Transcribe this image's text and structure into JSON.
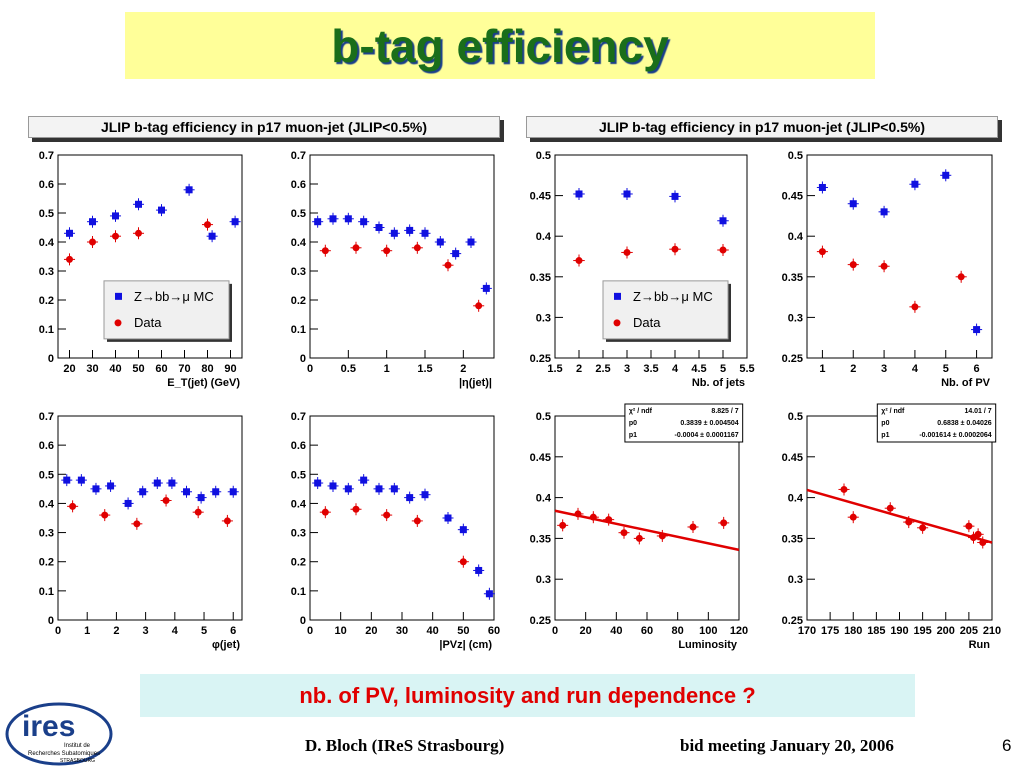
{
  "slide": {
    "title": "b-tag efficiency",
    "question": "nb. of PV, luminosity and run dependence ?",
    "footer_left": "D. Bloch  (IReS Strasbourg)",
    "footer_right": "bid meeting  January 20, 2006",
    "page_number": "6",
    "logo_text": "ires",
    "logo_sub1": "Institut de",
    "logo_sub2": "Recherches Subatomiques",
    "logo_sub3": "STRASBOURG"
  },
  "panel_titles": {
    "left": "JLIP b-tag efficiency in p17 muon-jet (JLIP<0.5%)",
    "right": "JLIP b-tag efficiency in p17 muon-jet (JLIP<0.5%)"
  },
  "colors": {
    "mc": "#1010e0",
    "data": "#e00000",
    "fit": "#e00000"
  },
  "chart_data": [
    {
      "type": "scatter",
      "id": "et",
      "xlabel": "E_T(jet) (GeV)",
      "xlim": [
        15,
        95
      ],
      "ylim": [
        0,
        0.7
      ],
      "xticks": [
        20,
        30,
        40,
        50,
        60,
        70,
        80,
        90
      ],
      "yticks": [
        0,
        0.1,
        0.2,
        0.3,
        0.4,
        0.5,
        0.6,
        0.7
      ],
      "legend": [
        "Z→bb→μ MC",
        "Data"
      ],
      "series": [
        {
          "name": "Z→bb→μ MC",
          "points": [
            [
              20,
              0.43
            ],
            [
              30,
              0.47
            ],
            [
              40,
              0.49
            ],
            [
              50,
              0.53
            ],
            [
              60,
              0.51
            ],
            [
              72,
              0.58
            ],
            [
              82,
              0.42
            ],
            [
              92,
              0.47
            ]
          ]
        },
        {
          "name": "Data",
          "points": [
            [
              20,
              0.34
            ],
            [
              30,
              0.4
            ],
            [
              40,
              0.42
            ],
            [
              50,
              0.43
            ],
            [
              80,
              0.46
            ]
          ]
        }
      ]
    },
    {
      "type": "scatter",
      "id": "eta",
      "xlabel": "|η(jet)|",
      "xlim": [
        0,
        2.4
      ],
      "ylim": [
        0,
        0.7
      ],
      "xticks": [
        0,
        0.5,
        1,
        1.5,
        2
      ],
      "yticks": [
        0,
        0.1,
        0.2,
        0.3,
        0.4,
        0.5,
        0.6,
        0.7
      ],
      "series": [
        {
          "name": "",
          "points": [
            [
              0.1,
              0.47
            ],
            [
              0.3,
              0.48
            ],
            [
              0.5,
              0.48
            ],
            [
              0.7,
              0.47
            ],
            [
              0.9,
              0.45
            ],
            [
              1.1,
              0.43
            ],
            [
              1.3,
              0.44
            ],
            [
              1.5,
              0.43
            ],
            [
              1.7,
              0.4
            ],
            [
              1.9,
              0.36
            ],
            [
              2.1,
              0.4
            ],
            [
              2.3,
              0.24
            ]
          ]
        },
        {
          "name": "",
          "points": [
            [
              0.2,
              0.37
            ],
            [
              0.6,
              0.38
            ],
            [
              1.0,
              0.37
            ],
            [
              1.4,
              0.38
            ],
            [
              1.8,
              0.32
            ],
            [
              2.2,
              0.18
            ]
          ]
        }
      ]
    },
    {
      "type": "scatter",
      "id": "njets",
      "xlabel": "Nb. of jets",
      "xlim": [
        1.5,
        5.5
      ],
      "ylim": [
        0.25,
        0.5
      ],
      "xticks": [
        1.5,
        2,
        2.5,
        3,
        3.5,
        4,
        4.5,
        5,
        5.5
      ],
      "yticks": [
        0.25,
        0.3,
        0.35,
        0.4,
        0.45,
        0.5
      ],
      "legend": [
        "Z→bb→μ MC",
        "Data"
      ],
      "series": [
        {
          "name": "Z→bb→μ MC",
          "points": [
            [
              2,
              0.452
            ],
            [
              3,
              0.452
            ],
            [
              4,
              0.449
            ],
            [
              5,
              0.419
            ]
          ]
        },
        {
          "name": "Data",
          "points": [
            [
              2,
              0.37
            ],
            [
              3,
              0.38
            ],
            [
              4,
              0.384
            ],
            [
              5,
              0.383
            ]
          ]
        }
      ]
    },
    {
      "type": "scatter",
      "id": "npv",
      "xlabel": "Nb. of PV",
      "xlim": [
        0.5,
        6.5
      ],
      "ylim": [
        0.25,
        0.5
      ],
      "xticks": [
        1,
        2,
        3,
        4,
        5,
        6
      ],
      "yticks": [
        0.25,
        0.3,
        0.35,
        0.4,
        0.45,
        0.5
      ],
      "series": [
        {
          "name": "",
          "points": [
            [
              1,
              0.46
            ],
            [
              2,
              0.44
            ],
            [
              3,
              0.43
            ],
            [
              4,
              0.464
            ],
            [
              5,
              0.475
            ],
            [
              6,
              0.285
            ]
          ]
        },
        {
          "name": "",
          "points": [
            [
              1,
              0.381
            ],
            [
              2,
              0.365
            ],
            [
              3,
              0.363
            ],
            [
              4,
              0.313
            ],
            [
              5.5,
              0.35
            ]
          ]
        }
      ]
    },
    {
      "type": "scatter",
      "id": "phi",
      "xlabel": "φ(jet)",
      "xlim": [
        0,
        6.3
      ],
      "ylim": [
        0,
        0.7
      ],
      "xticks": [
        0,
        1,
        2,
        3,
        4,
        5,
        6
      ],
      "yticks": [
        0,
        0.1,
        0.2,
        0.3,
        0.4,
        0.5,
        0.6,
        0.7
      ],
      "series": [
        {
          "name": "",
          "points": [
            [
              0.3,
              0.48
            ],
            [
              0.8,
              0.48
            ],
            [
              1.3,
              0.45
            ],
            [
              1.8,
              0.46
            ],
            [
              2.4,
              0.4
            ],
            [
              2.9,
              0.44
            ],
            [
              3.4,
              0.47
            ],
            [
              3.9,
              0.47
            ],
            [
              4.4,
              0.44
            ],
            [
              4.9,
              0.42
            ],
            [
              5.4,
              0.44
            ],
            [
              6.0,
              0.44
            ]
          ]
        },
        {
          "name": "",
          "points": [
            [
              0.5,
              0.39
            ],
            [
              1.6,
              0.36
            ],
            [
              2.7,
              0.33
            ],
            [
              3.7,
              0.41
            ],
            [
              4.8,
              0.37
            ],
            [
              5.8,
              0.34
            ]
          ]
        }
      ]
    },
    {
      "type": "scatter",
      "id": "pvz",
      "xlabel": "|PVz| (cm)",
      "xlim": [
        0,
        60
      ],
      "ylim": [
        0,
        0.7
      ],
      "xticks": [
        0,
        10,
        20,
        30,
        40,
        50,
        60
      ],
      "yticks": [
        0,
        0.1,
        0.2,
        0.3,
        0.4,
        0.5,
        0.6,
        0.7
      ],
      "series": [
        {
          "name": "",
          "points": [
            [
              2.5,
              0.47
            ],
            [
              7.5,
              0.46
            ],
            [
              12.5,
              0.45
            ],
            [
              17.5,
              0.48
            ],
            [
              22.5,
              0.45
            ],
            [
              27.5,
              0.45
            ],
            [
              32.5,
              0.42
            ],
            [
              37.5,
              0.43
            ],
            [
              45,
              0.35
            ],
            [
              50,
              0.31
            ],
            [
              55,
              0.17
            ],
            [
              58.5,
              0.09
            ]
          ]
        },
        {
          "name": "",
          "points": [
            [
              5,
              0.37
            ],
            [
              15,
              0.38
            ],
            [
              25,
              0.36
            ],
            [
              35,
              0.34
            ],
            [
              50,
              0.2
            ]
          ]
        }
      ]
    },
    {
      "type": "scatter",
      "id": "lumi",
      "xlabel": "Luminosity",
      "xlim": [
        0,
        120
      ],
      "ylim": [
        0.25,
        0.5
      ],
      "xticks": [
        0,
        20,
        40,
        60,
        80,
        100,
        120
      ],
      "yticks": [
        0.25,
        0.3,
        0.35,
        0.4,
        0.45,
        0.5
      ],
      "fit": {
        "p0": 0.3839,
        "p1": -0.0004,
        "x0": 0,
        "x1": 120
      },
      "stats": [
        [
          "χ² / ndf",
          "8.825 / 7"
        ],
        [
          "p0",
          "0.3839 ± 0.004504"
        ],
        [
          "p1",
          "-0.0004 ± 0.0001167"
        ]
      ],
      "series": [
        {
          "name": "",
          "points": [
            [
              5,
              0.366
            ],
            [
              15,
              0.38
            ],
            [
              25,
              0.376
            ],
            [
              35,
              0.373
            ],
            [
              45,
              0.357
            ],
            [
              55,
              0.35
            ],
            [
              70,
              0.353
            ],
            [
              90,
              0.364
            ],
            [
              110,
              0.369
            ]
          ]
        }
      ]
    },
    {
      "type": "scatter",
      "id": "run",
      "xlabel": "Run",
      "xlim": [
        170,
        210
      ],
      "ylim": [
        0.25,
        0.5
      ],
      "xticks": [
        170,
        175,
        180,
        185,
        190,
        195,
        200,
        205,
        210
      ],
      "yticks": [
        0.25,
        0.3,
        0.35,
        0.4,
        0.45,
        0.5
      ],
      "fit": {
        "p0": 0.6838,
        "p1": -0.001614,
        "x0": 170,
        "x1": 210
      },
      "stats": [
        [
          "χ² / ndf",
          "14.01 / 7"
        ],
        [
          "p0",
          "0.6838 ± 0.04026"
        ],
        [
          "p1",
          "-0.001614 ± 0.0002064"
        ]
      ],
      "series": [
        {
          "name": "",
          "points": [
            [
              178,
              0.41
            ],
            [
              180,
              0.376
            ],
            [
              188,
              0.387
            ],
            [
              192,
              0.37
            ],
            [
              195,
              0.363
            ],
            [
              205,
              0.365
            ],
            [
              206,
              0.351
            ],
            [
              207,
              0.355
            ],
            [
              208,
              0.345
            ]
          ]
        }
      ]
    }
  ]
}
